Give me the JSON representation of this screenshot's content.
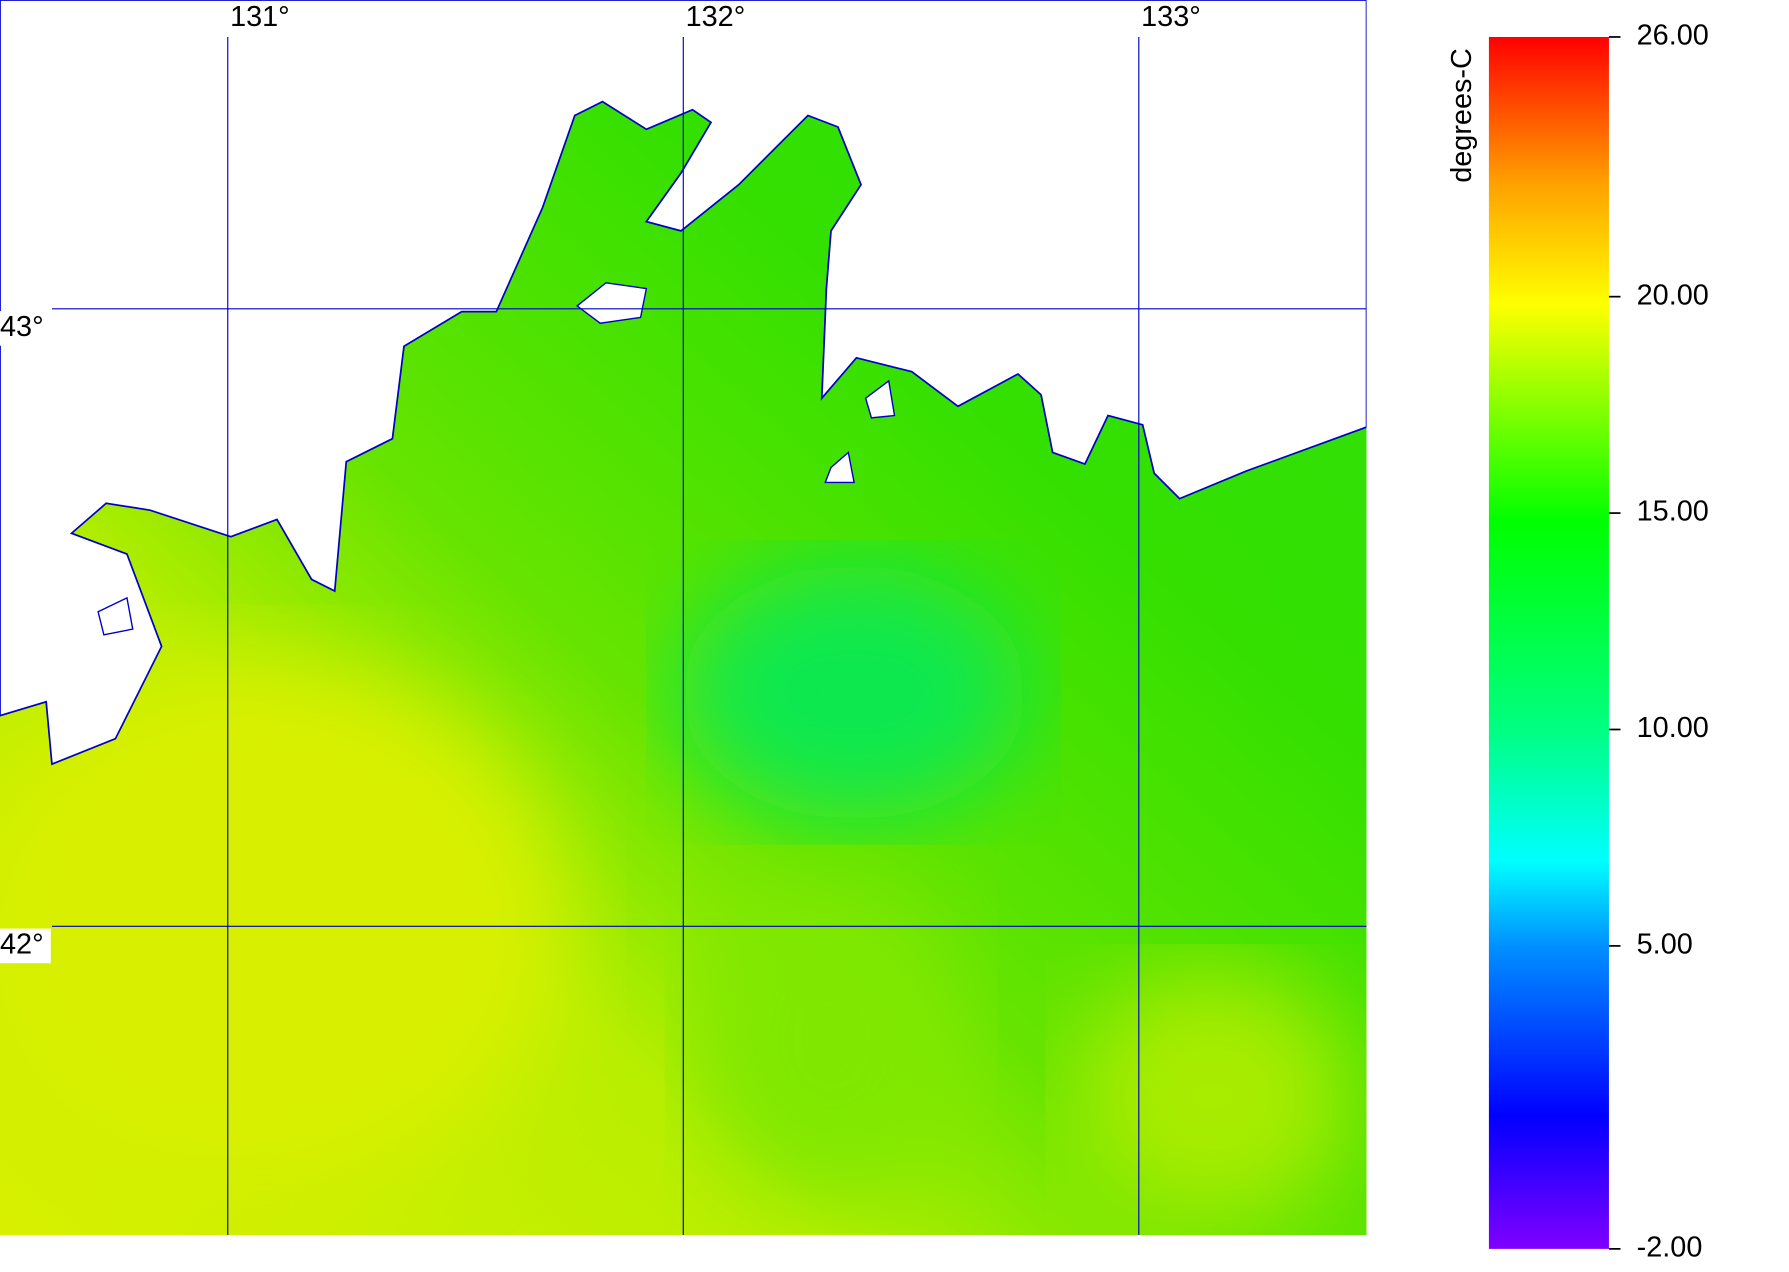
{
  "chart_data": {
    "type": "map",
    "xlim": [
      130.5,
      133.5
    ],
    "ylim": [
      41.5,
      43.5
    ],
    "xticks": [
      {
        "value": 131,
        "label": "131°"
      },
      {
        "value": 132,
        "label": "132°"
      },
      {
        "value": 133,
        "label": "133°"
      }
    ],
    "yticks": [
      {
        "value": 43,
        "label": "43°"
      },
      {
        "value": 42,
        "label": "42°"
      }
    ],
    "grid_color": "#0000c8",
    "colorbar": {
      "label": "degrees-C",
      "lim": [
        -2,
        26
      ],
      "ticks": [
        {
          "value": 26,
          "label": "26.00"
        },
        {
          "value": 20,
          "label": "20.00"
        },
        {
          "value": 15,
          "label": "15.00"
        },
        {
          "value": 10,
          "label": "10.00"
        },
        {
          "value": 5,
          "label": "5.00"
        },
        {
          "value": -2,
          "label": "-2.00"
        }
      ]
    }
  }
}
